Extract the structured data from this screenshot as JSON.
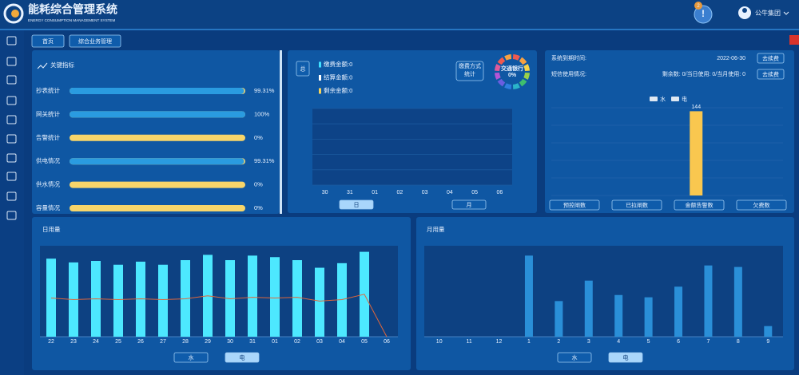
{
  "header": {
    "title": "能耗综合管理系统",
    "subtitle": "ENERGY CONSUMPTION MANAGEMENT SYSTEM",
    "badge": "2",
    "user": "公牛集团"
  },
  "tabs": [
    "首页",
    "综合业务管理"
  ],
  "key_indicators": {
    "title": "关键指标",
    "xlim": [
      0,
      100
    ],
    "fill_color": "#2a9be0",
    "track_color": "#f7d56a",
    "items": [
      {
        "label": "抄表统计",
        "value": 99.31,
        "value_label": "99.31%"
      },
      {
        "label": "网关统计",
        "value": 100,
        "value_label": "100%"
      },
      {
        "label": "告警统计",
        "value": 0,
        "value_label": "0%"
      },
      {
        "label": "供电情况",
        "value": 99.31,
        "value_label": "99.31%"
      },
      {
        "label": "供水情况",
        "value": 0,
        "value_label": "0%"
      },
      {
        "label": "容量情况",
        "value": 0,
        "value_label": "0%"
      }
    ]
  },
  "payment": {
    "total_button": "总",
    "legend": [
      {
        "text": "缴费金额:0",
        "color": "#3fe0ff"
      },
      {
        "text": "结算金额:0",
        "color": "#ffffff"
      },
      {
        "text": "剩余金额:0",
        "color": "#f5d35a"
      }
    ],
    "method_button": "缴费方式统计",
    "donut": {
      "label": "交通银行",
      "value": 0,
      "value_label": "0%"
    },
    "categories": [
      "30",
      "31",
      "01",
      "02",
      "03",
      "04",
      "05",
      "06"
    ],
    "buttons": [
      "日",
      "月"
    ]
  },
  "system": {
    "expiry_label": "系统到期时间:",
    "expiry_date": "2022-06-30",
    "renew_button": "去续费",
    "sms_label": "短信使用情况:",
    "sms_usage": "剩余数: 0/当日使用: 0/当月使用: 0",
    "sms_button": "去续费",
    "legend": [
      {
        "text": "水",
        "color": "#dfe8f2"
      },
      {
        "text": "电",
        "color": "#dfe8f2"
      }
    ],
    "chart": {
      "categories": [
        "预控闸数",
        "已拉闸数",
        "金额告警数",
        "欠费数"
      ],
      "values": [
        0,
        0,
        144,
        0
      ],
      "color": "#f9c74f",
      "ylim": [
        0,
        150
      ]
    }
  },
  "daily_usage": {
    "title": "日用量",
    "categories": [
      "22",
      "23",
      "24",
      "25",
      "26",
      "27",
      "28",
      "29",
      "30",
      "31",
      "01",
      "02",
      "03",
      "04",
      "05",
      "06"
    ],
    "values": [
      103,
      98,
      100,
      95,
      99,
      95,
      101,
      108,
      101,
      107,
      105,
      101,
      91,
      97,
      112,
      0
    ],
    "color": "#4de8ff",
    "line": {
      "values": [
        51,
        49,
        50,
        49,
        50,
        49,
        50,
        54,
        50,
        52,
        51,
        52,
        47,
        49,
        56,
        0
      ],
      "color": "#e0663a"
    },
    "ylim": [
      0,
      120
    ],
    "buttons": [
      "水",
      "电"
    ]
  },
  "monthly_usage": {
    "title": "月用量",
    "categories": [
      "10",
      "11",
      "12",
      "1",
      "2",
      "3",
      "4",
      "5",
      "6",
      "7",
      "8",
      "9"
    ],
    "values": [
      0,
      0,
      0,
      107,
      47,
      74,
      55,
      52,
      66,
      94,
      92,
      14
    ],
    "color": "#2a8fd8",
    "ylim": [
      0,
      120
    ],
    "buttons": [
      "水",
      "电"
    ]
  }
}
